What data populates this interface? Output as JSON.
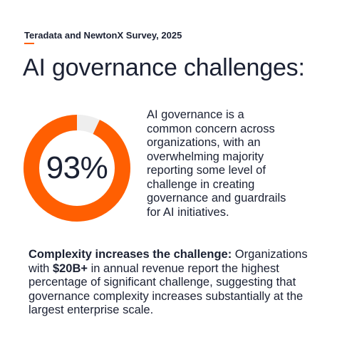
{
  "source_label": "Teradata and NewtonX Survey, 2025",
  "title": "AI governance challenges:",
  "stat": {
    "value": 93,
    "label": "93%",
    "ring_color": "#ff5f02",
    "track_color": "#eeeeee"
  },
  "description": "AI governance is a common concern across organizations, with an overwhelming majority reporting some level of challenge in creating governance and guardrails for AI initiatives.",
  "note": {
    "lead": "Complexity increases the challenge:",
    "text_1": " Organizations with ",
    "highlight": "$20B+",
    "text_2": " in annual revenue report the highest percentage of significant challenge, suggesting that governance complexity increases substantially at the largest enterprise scale."
  },
  "colors": {
    "accent": "#ff5f02",
    "text": "#1b2133"
  }
}
